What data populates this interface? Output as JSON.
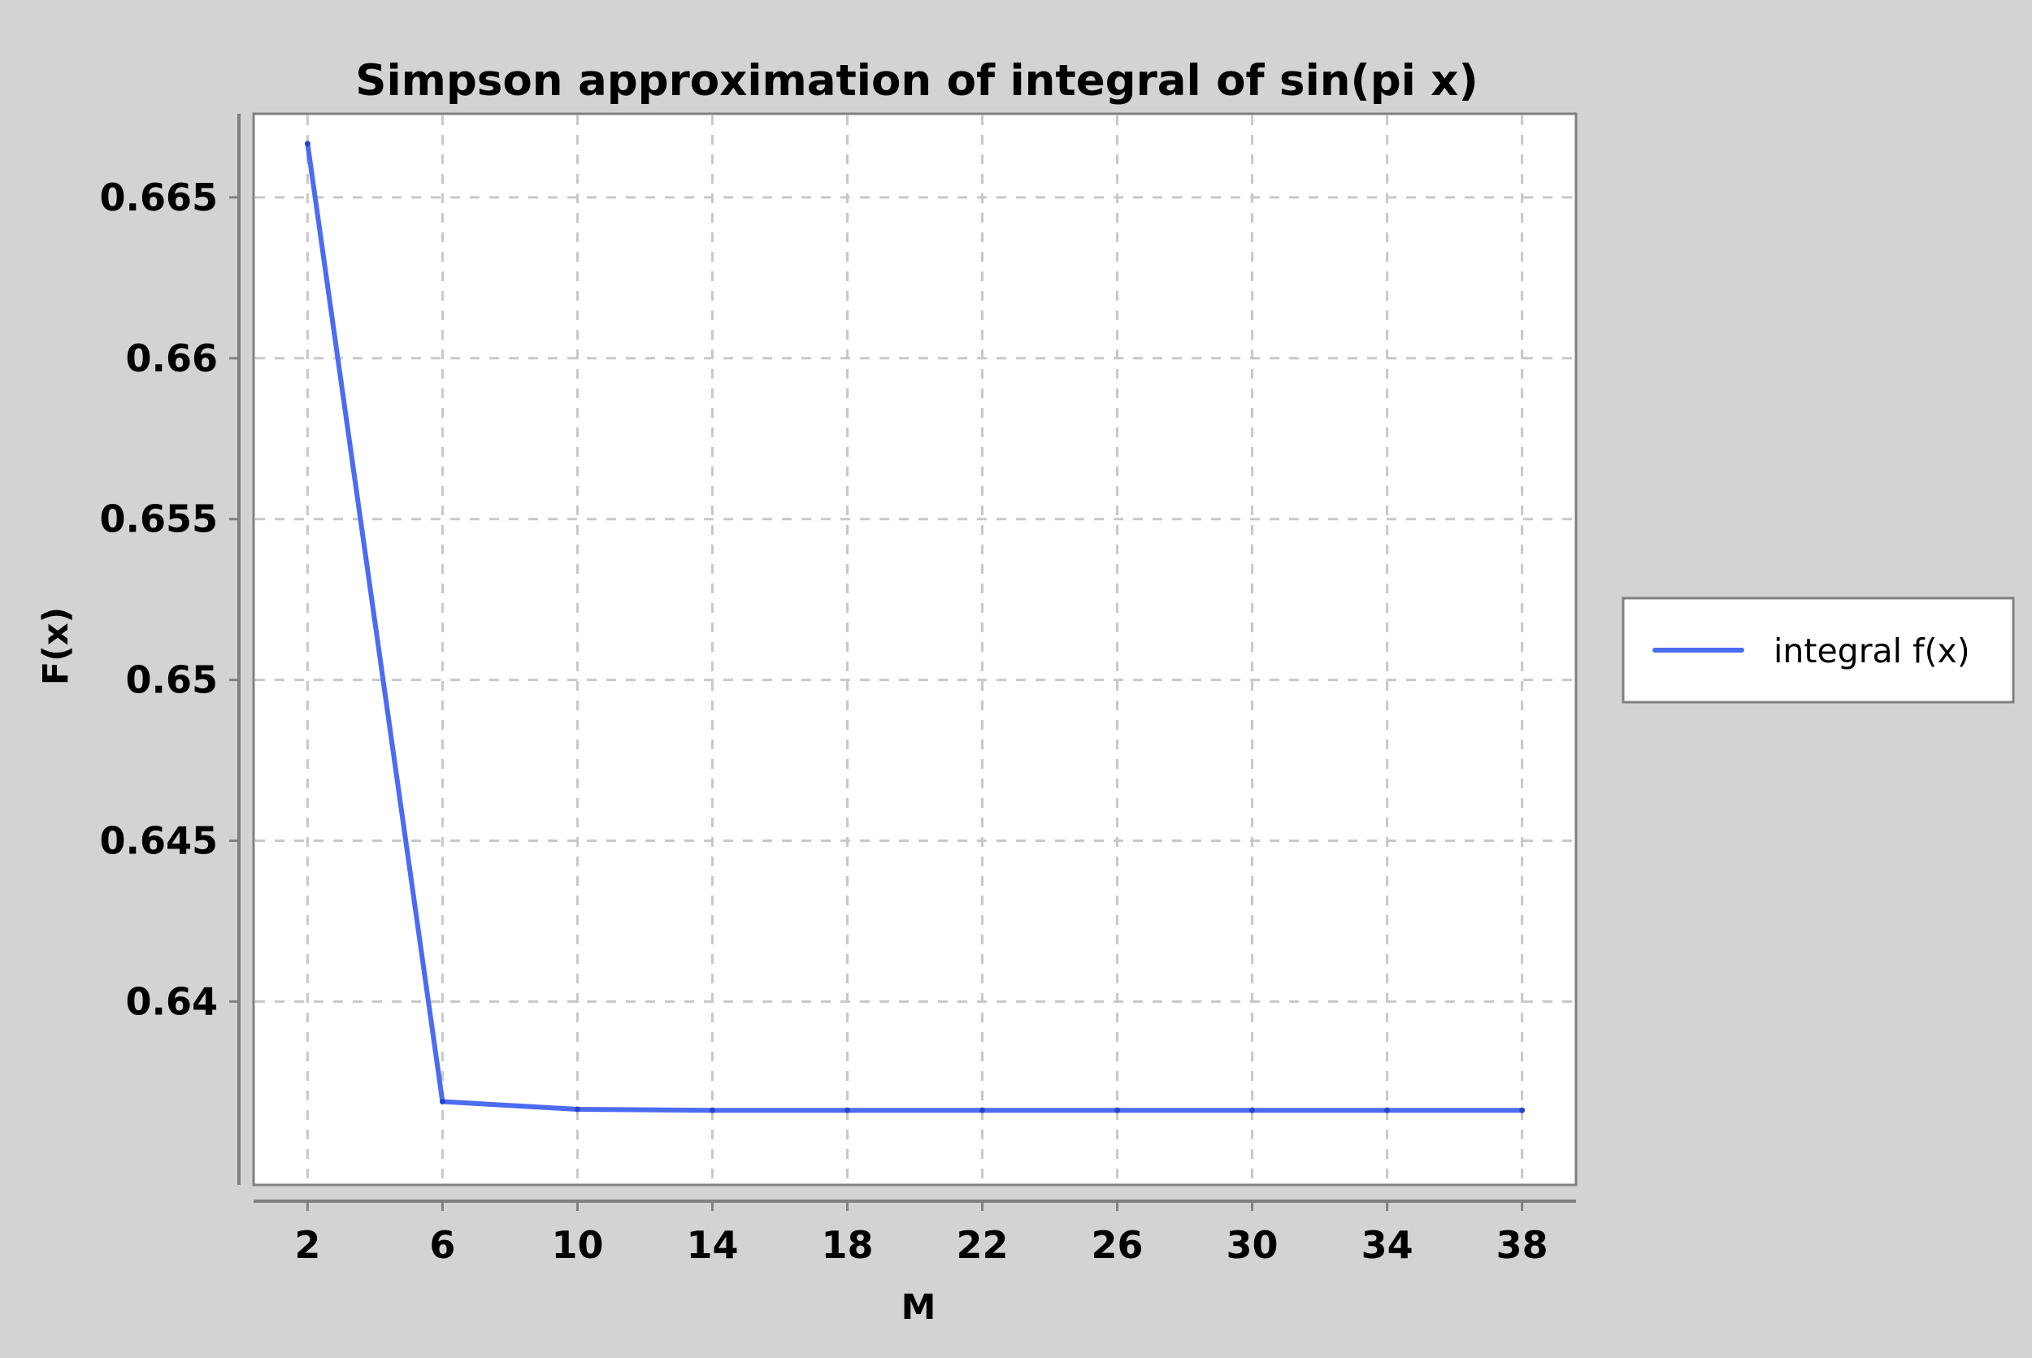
{
  "chart_data": {
    "type": "line",
    "title": "Simpson approximation of integral of sin(pi x)",
    "xlabel": "M",
    "ylabel": "F(x)",
    "x": [
      2,
      6,
      10,
      14,
      18,
      22,
      26,
      30,
      34,
      38
    ],
    "series": [
      {
        "name": "integral f(x)",
        "color": "#4b6cf2",
        "values": [
          0.66667,
          0.63689,
          0.63665,
          0.63662,
          0.63662,
          0.63662,
          0.63662,
          0.63662,
          0.63662,
          0.63662
        ]
      }
    ],
    "xlim": [
      0.4,
      39.6
    ],
    "ylim": [
      0.6343,
      0.6676
    ],
    "xticks": [
      2,
      6,
      10,
      14,
      18,
      22,
      26,
      30,
      34,
      38
    ],
    "yticks": [
      0.64,
      0.645,
      0.65,
      0.655,
      0.66,
      0.665
    ],
    "ytick_labels": [
      "0.64",
      "0.645",
      "0.65",
      "0.655",
      "0.66",
      "0.665"
    ],
    "grid": true,
    "legend_position": "right",
    "background_color": "#d3d3d3",
    "plot_background_color": "#ffffff"
  }
}
